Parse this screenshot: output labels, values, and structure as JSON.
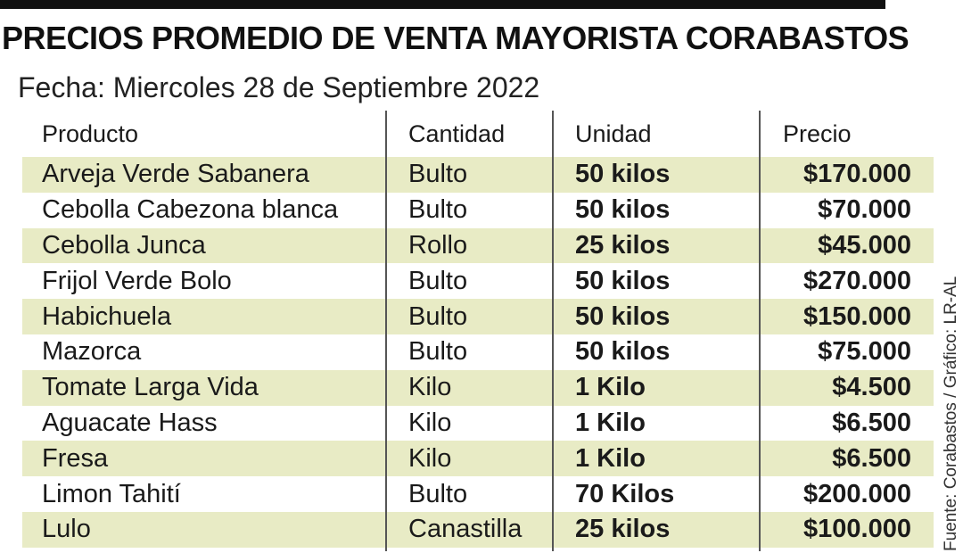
{
  "title": "PRECIOS PROMEDIO DE VENTA MAYORISTA CORABASTOS",
  "subtitle": "Fecha: Miercoles 28 de Septiembre 2022",
  "table": {
    "headers": [
      "Producto",
      "Cantidad",
      "Unidad",
      "Precio"
    ],
    "rows": [
      {
        "producto": "Arveja Verde Sabanera",
        "cantidad": "Bulto",
        "unidad": "50 kilos",
        "precio": "$170.000"
      },
      {
        "producto": "Cebolla Cabezona blanca",
        "cantidad": "Bulto",
        "unidad": "50 kilos",
        "precio": "$70.000"
      },
      {
        "producto": "Cebolla Junca",
        "cantidad": "Rollo",
        "unidad": "25 kilos",
        "precio": "$45.000"
      },
      {
        "producto": "Frijol Verde Bolo",
        "cantidad": "Bulto",
        "unidad": "50 kilos",
        "precio": "$270.000"
      },
      {
        "producto": "Habichuela",
        "cantidad": "Bulto",
        "unidad": "50 kilos",
        "precio": "$150.000"
      },
      {
        "producto": "Mazorca",
        "cantidad": "Bulto",
        "unidad": "50 kilos",
        "precio": "$75.000"
      },
      {
        "producto": "Tomate Larga Vida",
        "cantidad": "Kilo",
        "unidad": "1 Kilo",
        "precio": "$4.500"
      },
      {
        "producto": "Aguacate Hass",
        "cantidad": "Kilo",
        "unidad": "1 Kilo",
        "precio": "$6.500"
      },
      {
        "producto": "Fresa",
        "cantidad": "Kilo",
        "unidad": "1 Kilo",
        "precio": "$6.500"
      },
      {
        "producto": "Limon Tahití",
        "cantidad": "Bulto",
        "unidad": "70 Kilos",
        "precio": "$200.000"
      },
      {
        "producto": "Lulo",
        "cantidad": "Canastilla",
        "unidad": "25 kilos",
        "precio": "$100.000"
      }
    ]
  },
  "source": "Fuente: Corabastos / Gráfico: LR-AL",
  "colors": {
    "shade": "#e8ebc5",
    "rule": "#111111",
    "divider": "#555555"
  }
}
